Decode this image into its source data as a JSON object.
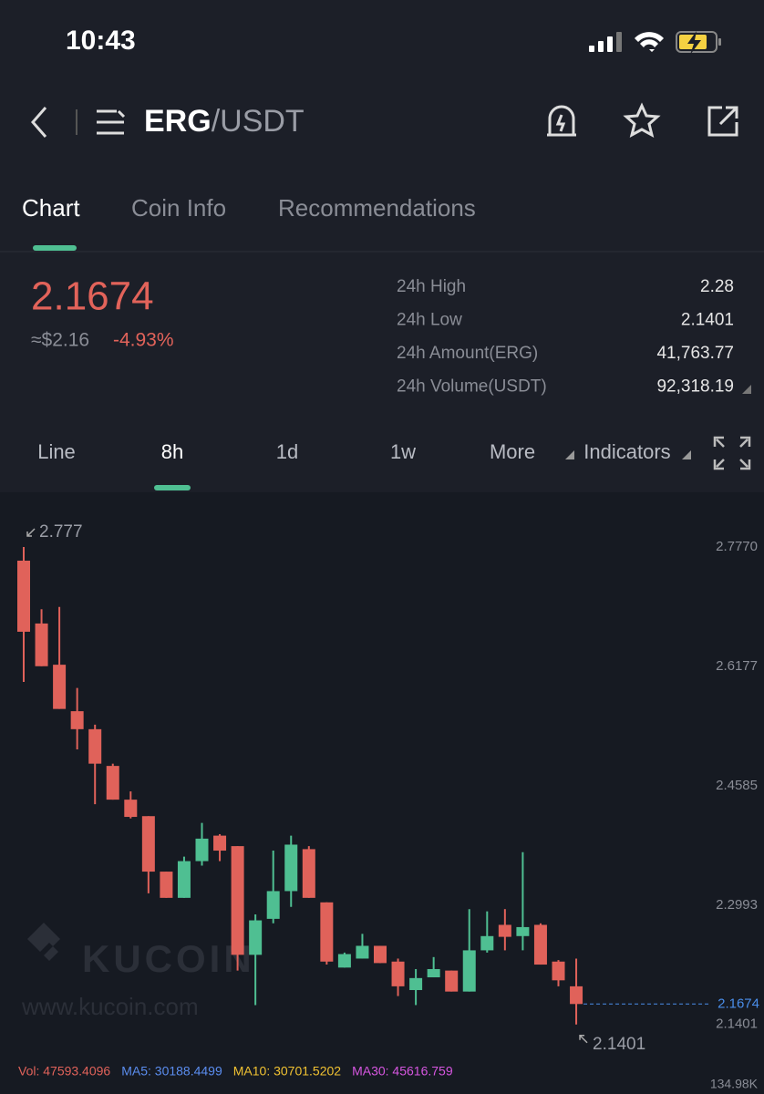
{
  "status_bar": {
    "time": "10:43"
  },
  "header": {
    "base": "ERG",
    "quote": "/USDT"
  },
  "tabs": [
    "Chart",
    "Coin Info",
    "Recommendations"
  ],
  "ticker": {
    "price": "2.1674",
    "approx": "≈$2.16",
    "change": "-4.93%",
    "stats": [
      {
        "label": "24h High",
        "value": "2.28"
      },
      {
        "label": "24h Low",
        "value": "2.1401"
      },
      {
        "label": "24h Amount(ERG)",
        "value": "41,763.77"
      },
      {
        "label": "24h Volume(USDT)",
        "value": "92,318.19"
      }
    ]
  },
  "timeframes": [
    "Line",
    "8h",
    "1d",
    "1w",
    "More",
    "Indicators"
  ],
  "watermark": {
    "brand": "KUCOIN",
    "url": "www.kucoin.com"
  },
  "chart_data": {
    "type": "candlestick",
    "up_color": "#4fbf92",
    "down_color": "#e0625a",
    "open": [
      2.7588,
      2.675,
      2.62,
      2.558,
      2.534,
      2.485,
      2.44,
      2.418,
      2.344,
      2.309,
      2.358,
      2.392,
      2.378,
      2.233,
      2.281,
      2.318,
      2.374,
      2.303,
      2.216,
      2.228,
      2.245,
      2.224,
      2.186,
      2.203,
      2.212,
      2.184,
      2.239,
      2.273,
      2.258,
      2.273,
      2.224,
      2.191
    ],
    "high": [
      2.777,
      2.694,
      2.697,
      2.589,
      2.54,
      2.488,
      2.451,
      2.418,
      2.344,
      2.364,
      2.409,
      2.394,
      2.378,
      2.287,
      2.372,
      2.392,
      2.378,
      2.303,
      2.236,
      2.261,
      2.245,
      2.228,
      2.214,
      2.23,
      2.212,
      2.294,
      2.291,
      2.294,
      2.37,
      2.275,
      2.226,
      2.228
    ],
    "low": [
      2.597,
      2.618,
      2.561,
      2.507,
      2.434,
      2.44,
      2.415,
      2.315,
      2.309,
      2.309,
      2.352,
      2.358,
      2.212,
      2.166,
      2.275,
      2.297,
      2.309,
      2.22,
      2.216,
      2.228,
      2.222,
      2.178,
      2.166,
      2.203,
      2.184,
      2.184,
      2.236,
      2.239,
      2.239,
      2.22,
      2.191,
      2.1401
    ],
    "close": [
      2.664,
      2.618,
      2.561,
      2.534,
      2.488,
      2.44,
      2.417,
      2.344,
      2.309,
      2.358,
      2.388,
      2.372,
      2.233,
      2.279,
      2.318,
      2.38,
      2.309,
      2.224,
      2.234,
      2.245,
      2.222,
      2.191,
      2.202,
      2.214,
      2.184,
      2.239,
      2.258,
      2.257,
      2.27,
      2.22,
      2.199,
      2.1674
    ],
    "ylim": [
      2.096,
      2.85
    ],
    "yticks": [
      {
        "value": 2.777,
        "label": "2.7770"
      },
      2.6177,
      2.4585,
      2.2993,
      2.1401
    ],
    "max_label": "2.777",
    "min_label": "2.1401",
    "last_color": "#4a8eea",
    "volume_axis_label": "134.98K",
    "legend": [
      {
        "text": "Vol: 47593.4096",
        "color": "#e0625a"
      },
      {
        "text": "MA5: 30188.4499",
        "color": "#5b8def"
      },
      {
        "text": "MA10: 30701.5202",
        "color": "#f1c232"
      },
      {
        "text": "MA30: 45616.759",
        "color": "#d656e0"
      }
    ]
  }
}
